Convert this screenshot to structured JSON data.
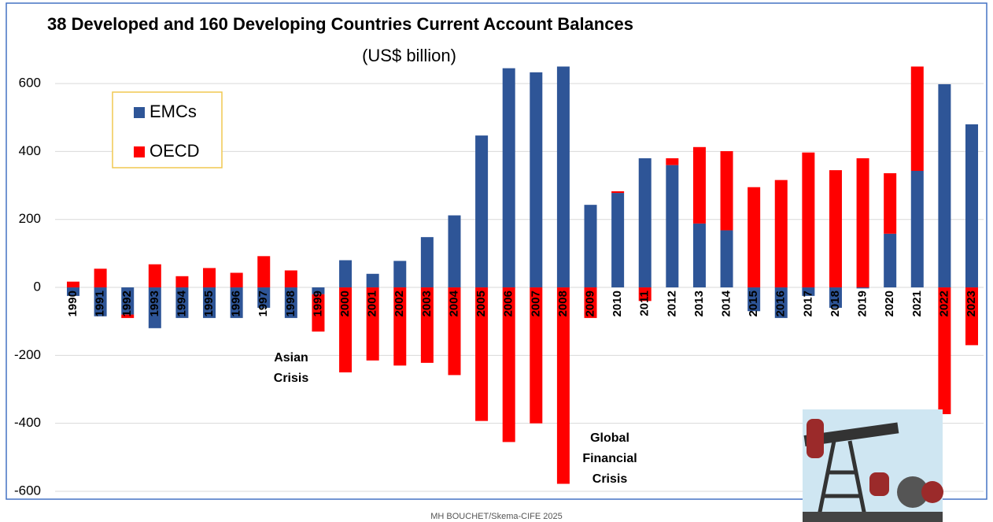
{
  "chart_data": {
    "type": "stacked-bar",
    "title": "38 Developed and 160 Developing Countries Current Account Balances",
    "subtitle": "(US$ billion)",
    "categories": [
      "1990",
      "1991",
      "1992",
      "1993",
      "1994",
      "1995",
      "1996",
      "1997",
      "1998",
      "1999",
      "2000",
      "2001",
      "2002",
      "2003",
      "2004",
      "2005",
      "2006",
      "2007",
      "2008",
      "2009",
      "2010",
      "2011",
      "2012",
      "2013",
      "2014",
      "2015",
      "2016",
      "2017",
      "2018",
      "2019",
      "2020",
      "2021",
      "2022",
      "2023"
    ],
    "series": [
      {
        "name": "EMCs",
        "color": "#2e5597",
        "values": [
          -25,
          -85,
          -80,
          -120,
          -90,
          -90,
          -90,
          -60,
          -90,
          -20,
          80,
          40,
          78,
          148,
          212,
          447,
          645,
          633,
          650,
          243,
          278,
          380,
          360,
          188,
          168,
          -70,
          -90,
          -25,
          -60,
          -3,
          158,
          343,
          598,
          480
        ]
      },
      {
        "name": "OECD",
        "color": "#ff0000",
        "values": [
          17,
          55,
          -10,
          68,
          33,
          57,
          43,
          92,
          50,
          -110,
          -250,
          -215,
          -230,
          -222,
          -258,
          -393,
          -455,
          -400,
          -578,
          -90,
          5,
          -40,
          20,
          225,
          233,
          295,
          316,
          397,
          345,
          380,
          178,
          307,
          -373,
          -170
        ]
      }
    ],
    "ylim": [
      -600,
      650
    ],
    "yticks": [
      -600,
      -400,
      -200,
      0,
      200,
      400,
      600
    ],
    "grid": true,
    "legend": "upper-left",
    "annotations": [
      "Asian Crisis",
      "Global Financial Crisis"
    ],
    "footer": "MH BOUCHET/Skema-CIFE 2025"
  }
}
